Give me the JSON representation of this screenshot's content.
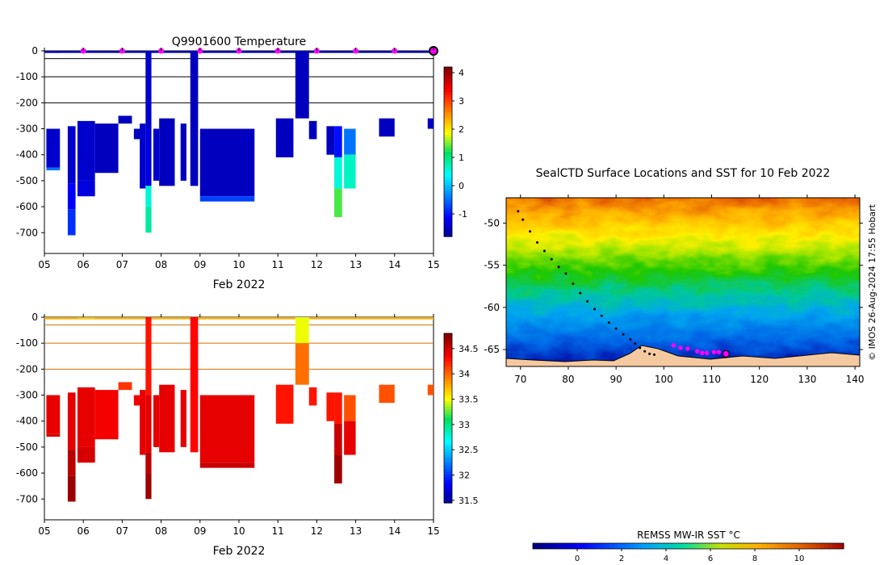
{
  "chart_data": [
    {
      "id": "temperature",
      "type": "heatmap",
      "title": "Q9901600  Temperature",
      "xlabel": "Feb 2022",
      "ylabel": "",
      "x_tick_labels": [
        "05",
        "06",
        "07",
        "08",
        "09",
        "10",
        "11",
        "12",
        "13",
        "14",
        "15"
      ],
      "x_range": [
        5,
        15
      ],
      "y_range": [
        -780,
        0
      ],
      "y_ticks": [
        0,
        -100,
        -200,
        -300,
        -400,
        -500,
        -600,
        -700
      ],
      "colorbar": {
        "min": -1.8,
        "max": 4.2,
        "ticks": [
          -1,
          0,
          1,
          2,
          3,
          4
        ]
      },
      "markers_day": [
        6,
        7,
        8,
        9,
        10,
        11,
        12,
        13,
        14
      ],
      "marker_color": "#ff00ff",
      "current_day": 15,
      "profiles": [
        {
          "x": 5.05,
          "w": 0.35,
          "segs": [
            [
              0,
              -8,
              -1.6
            ],
            [
              -300,
              -450,
              -1.4
            ],
            [
              -450,
              -460,
              -0.4
            ]
          ]
        },
        {
          "x": 5.6,
          "w": 0.2,
          "segs": [
            [
              -290,
              -510,
              -1.4
            ],
            [
              -510,
              -610,
              -1.1
            ],
            [
              -610,
              -710,
              -0.8
            ]
          ]
        },
        {
          "x": 5.85,
          "w": 0.45,
          "segs": [
            [
              0,
              -6,
              -1.5
            ],
            [
              -270,
              -500,
              -1.4
            ],
            [
              -500,
              -560,
              -1.3
            ]
          ]
        },
        {
          "x": 6.3,
          "w": 0.6,
          "segs": [
            [
              -280,
              -470,
              -1.5
            ]
          ]
        },
        {
          "x": 6.9,
          "w": 0.35,
          "segs": [
            [
              -250,
              -280,
              -1.5
            ]
          ]
        },
        {
          "x": 7.3,
          "w": 0.2,
          "segs": [
            [
              -300,
              -340,
              -1.5
            ]
          ]
        },
        {
          "x": 7.45,
          "w": 0.15,
          "segs": [
            [
              -280,
              -530,
              -1.4
            ]
          ]
        },
        {
          "x": 7.6,
          "w": 0.15,
          "segs": [
            [
              0,
              -300,
              -1.4
            ],
            [
              -300,
              -520,
              -1.3
            ],
            [
              -520,
              -600,
              0.6
            ],
            [
              -600,
              -700,
              0.9
            ]
          ]
        },
        {
          "x": 7.8,
          "w": 0.15,
          "segs": [
            [
              -300,
              -500,
              -1.4
            ]
          ]
        },
        {
          "x": 7.95,
          "w": 0.4,
          "segs": [
            [
              -260,
              -520,
              -1.5
            ]
          ]
        },
        {
          "x": 8.5,
          "w": 0.15,
          "segs": [
            [
              -280,
              -500,
              -1.5
            ]
          ]
        },
        {
          "x": 8.75,
          "w": 0.2,
          "segs": [
            [
              0,
              -520,
              -1.5
            ]
          ]
        },
        {
          "x": 9.0,
          "w": 1.4,
          "segs": [
            [
              -300,
              -560,
              -1.5
            ],
            [
              -560,
              -580,
              -0.7
            ]
          ]
        },
        {
          "x": 10.95,
          "w": 0.45,
          "segs": [
            [
              -260,
              -410,
              -1.5
            ]
          ]
        },
        {
          "x": 11.45,
          "w": 0.35,
          "segs": [
            [
              0,
              -260,
              -1.5
            ]
          ]
        },
        {
          "x": 11.8,
          "w": 0.2,
          "segs": [
            [
              -270,
              -340,
              -1.5
            ]
          ]
        },
        {
          "x": 12.25,
          "w": 0.2,
          "segs": [
            [
              -290,
              -400,
              -1.5
            ]
          ]
        },
        {
          "x": 12.45,
          "w": 0.2,
          "segs": [
            [
              -290,
              -410,
              -1.0
            ],
            [
              -410,
              -530,
              0.6
            ],
            [
              -530,
              -640,
              1.4
            ]
          ]
        },
        {
          "x": 12.7,
          "w": 0.3,
          "segs": [
            [
              -300,
              -400,
              -0.4
            ],
            [
              -400,
              -530,
              0.7
            ]
          ]
        },
        {
          "x": 13.6,
          "w": 0.4,
          "segs": [
            [
              -260,
              -330,
              -1.5
            ]
          ]
        },
        {
          "x": 14.85,
          "w": 0.15,
          "segs": [
            [
              -260,
              -300,
              -1.5
            ]
          ]
        }
      ]
    },
    {
      "id": "salinity",
      "type": "heatmap",
      "title": "",
      "xlabel": "Feb 2022",
      "ylabel": "",
      "x_tick_labels": [
        "05",
        "06",
        "07",
        "08",
        "09",
        "10",
        "11",
        "12",
        "13",
        "14",
        "15"
      ],
      "x_range": [
        5,
        15
      ],
      "y_range": [
        -780,
        0
      ],
      "y_ticks": [
        0,
        -100,
        -200,
        -300,
        -400,
        -500,
        -600,
        -700
      ],
      "colorbar": {
        "min": 31.45,
        "max": 34.8,
        "ticks": [
          31.5,
          32,
          32.5,
          33,
          33.5,
          34,
          34.5
        ]
      },
      "profiles": [
        {
          "x": 5.05,
          "w": 0.35,
          "segs": [
            [
              0,
              -8,
              33.8
            ],
            [
              -300,
              -450,
              34.45
            ],
            [
              -450,
              -460,
              34.5
            ]
          ]
        },
        {
          "x": 5.6,
          "w": 0.2,
          "segs": [
            [
              -290,
              -510,
              34.45
            ],
            [
              -510,
              -610,
              34.6
            ],
            [
              -610,
              -710,
              34.7
            ]
          ]
        },
        {
          "x": 5.85,
          "w": 0.45,
          "segs": [
            [
              0,
              -6,
              33.7
            ],
            [
              -270,
              -500,
              34.45
            ],
            [
              -500,
              -560,
              34.5
            ]
          ]
        },
        {
          "x": 6.3,
          "w": 0.6,
          "segs": [
            [
              -280,
              -470,
              34.4
            ]
          ]
        },
        {
          "x": 6.9,
          "w": 0.35,
          "segs": [
            [
              -250,
              -280,
              34.2
            ]
          ]
        },
        {
          "x": 7.3,
          "w": 0.2,
          "segs": [
            [
              -300,
              -340,
              34.4
            ]
          ]
        },
        {
          "x": 7.45,
          "w": 0.15,
          "segs": [
            [
              -280,
              -530,
              34.45
            ]
          ]
        },
        {
          "x": 7.6,
          "w": 0.15,
          "segs": [
            [
              0,
              -300,
              34.3
            ],
            [
              -300,
              -520,
              34.45
            ],
            [
              -520,
              -600,
              34.6
            ],
            [
              -600,
              -700,
              34.7
            ]
          ]
        },
        {
          "x": 7.8,
          "w": 0.15,
          "segs": [
            [
              -300,
              -500,
              34.45
            ]
          ]
        },
        {
          "x": 7.95,
          "w": 0.4,
          "segs": [
            [
              -260,
              -520,
              34.45
            ]
          ]
        },
        {
          "x": 8.5,
          "w": 0.15,
          "segs": [
            [
              -280,
              -500,
              34.45
            ]
          ]
        },
        {
          "x": 8.75,
          "w": 0.2,
          "segs": [
            [
              0,
              -520,
              34.35
            ]
          ]
        },
        {
          "x": 9.0,
          "w": 1.4,
          "segs": [
            [
              -300,
              -560,
              34.45
            ],
            [
              -560,
              -580,
              34.55
            ]
          ]
        },
        {
          "x": 10.95,
          "w": 0.45,
          "segs": [
            [
              -260,
              -410,
              34.3
            ]
          ]
        },
        {
          "x": 11.45,
          "w": 0.35,
          "segs": [
            [
              0,
              -100,
              33.5
            ],
            [
              -100,
              -260,
              34.0
            ]
          ]
        },
        {
          "x": 11.8,
          "w": 0.2,
          "segs": [
            [
              -270,
              -340,
              34.3
            ]
          ]
        },
        {
          "x": 12.25,
          "w": 0.2,
          "segs": [
            [
              -290,
              -400,
              34.3
            ]
          ]
        },
        {
          "x": 12.45,
          "w": 0.2,
          "segs": [
            [
              -290,
              -410,
              34.3
            ],
            [
              -410,
              -530,
              34.55
            ],
            [
              -530,
              -640,
              34.7
            ]
          ]
        },
        {
          "x": 12.7,
          "w": 0.3,
          "segs": [
            [
              -300,
              -400,
              34.1
            ],
            [
              -400,
              -530,
              34.45
            ]
          ]
        },
        {
          "x": 13.6,
          "w": 0.4,
          "segs": [
            [
              -260,
              -330,
              34.1
            ]
          ]
        },
        {
          "x": 14.85,
          "w": 0.15,
          "segs": [
            [
              -260,
              -300,
              34.1
            ]
          ]
        }
      ]
    },
    {
      "id": "map",
      "type": "heatmap",
      "title": "SealCTD Surface Locations and SST for 10 Feb 2022",
      "xlabel": "",
      "ylabel": "",
      "x_range": [
        67,
        141
      ],
      "y_range": [
        -67,
        -47
      ],
      "x_ticks": [
        70,
        80,
        90,
        100,
        110,
        120,
        130,
        140
      ],
      "y_ticks": [
        -50,
        -55,
        -60,
        -65
      ],
      "credit": "© IMOS 26-Aug-2024 17:55 Hobart",
      "colorbar_label": "REMSS MW-IR SST °C",
      "colorbar": {
        "min": -2,
        "max": 12,
        "ticks": [
          0,
          2,
          4,
          6,
          8,
          10
        ]
      },
      "land_color": "#f5c9a0",
      "track": [
        [
          69.5,
          -48.6
        ],
        [
          70.5,
          -49.6
        ],
        [
          72,
          -51
        ],
        [
          73.5,
          -52.3
        ],
        [
          75,
          -53.3
        ],
        [
          76.5,
          -54.3
        ],
        [
          78,
          -55.2
        ],
        [
          79.5,
          -56
        ],
        [
          81,
          -57.2
        ],
        [
          82.5,
          -58.3
        ],
        [
          84,
          -59.3
        ],
        [
          85.5,
          -60.2
        ],
        [
          87,
          -61
        ],
        [
          88.5,
          -61.8
        ],
        [
          90,
          -62.5
        ],
        [
          91.5,
          -63.2
        ],
        [
          93,
          -63.8
        ],
        [
          94,
          -64.3
        ],
        [
          95,
          -64.8
        ],
        [
          96,
          -65.2
        ],
        [
          97,
          -65.5
        ],
        [
          98,
          -65.6
        ]
      ],
      "surface_locations": [
        [
          102,
          -64.5
        ],
        [
          103.5,
          -64.8
        ],
        [
          105,
          -64.9
        ],
        [
          107,
          -65.2
        ],
        [
          108,
          -65.4
        ],
        [
          109,
          -65.4
        ],
        [
          110.5,
          -65.3
        ],
        [
          111.5,
          -65.3
        ]
      ],
      "current_location": [
        113,
        -65.5
      ]
    }
  ]
}
